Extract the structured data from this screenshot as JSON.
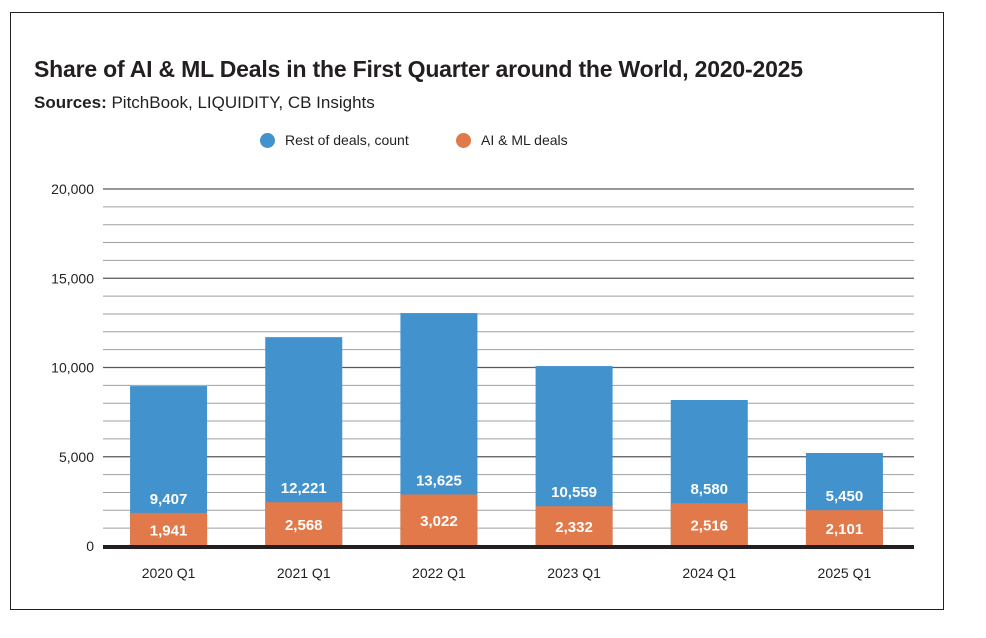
{
  "chart_data": {
    "type": "bar",
    "title": "Share of AI & ML Deals in the First Quarter around the World, 2020-2025",
    "subtitle_label": "Sources:",
    "subtitle_text": " PitchBook, LIQUIDITY, CB Insights",
    "xlabel": "",
    "ylabel": "",
    "ylim": [
      0,
      20000
    ],
    "yticks": [
      0,
      5000,
      10000,
      15000,
      20000
    ],
    "ytick_labels": [
      "0",
      "5,000",
      "10,000",
      "15,000",
      "20,000"
    ],
    "minor_grid_step": 1000,
    "grid": true,
    "legend_position": "top-center",
    "categories": [
      "2020 Q1",
      "2021 Q1",
      "2022 Q1",
      "2023 Q1",
      "2024 Q1",
      "2025 Q1"
    ],
    "series": [
      {
        "name": "Rest of deals, count",
        "color": "#4292cd",
        "values": [
          9407,
          12221,
          13625,
          10559,
          8580,
          5450
        ],
        "labels": [
          "9,407",
          "12,221",
          "13,625",
          "10,559",
          "8,580",
          "5,450"
        ]
      },
      {
        "name": "AI & ML deals",
        "color": "#e2794a",
        "values": [
          1941,
          2568,
          3022,
          2332,
          2516,
          2101
        ],
        "labels": [
          "1,941",
          "2,568",
          "3,022",
          "2,332",
          "2,516",
          "2,101"
        ]
      }
    ],
    "apparent_bar_totals": [
      8960,
      11700,
      13050,
      10080,
      8180,
      5210
    ]
  }
}
